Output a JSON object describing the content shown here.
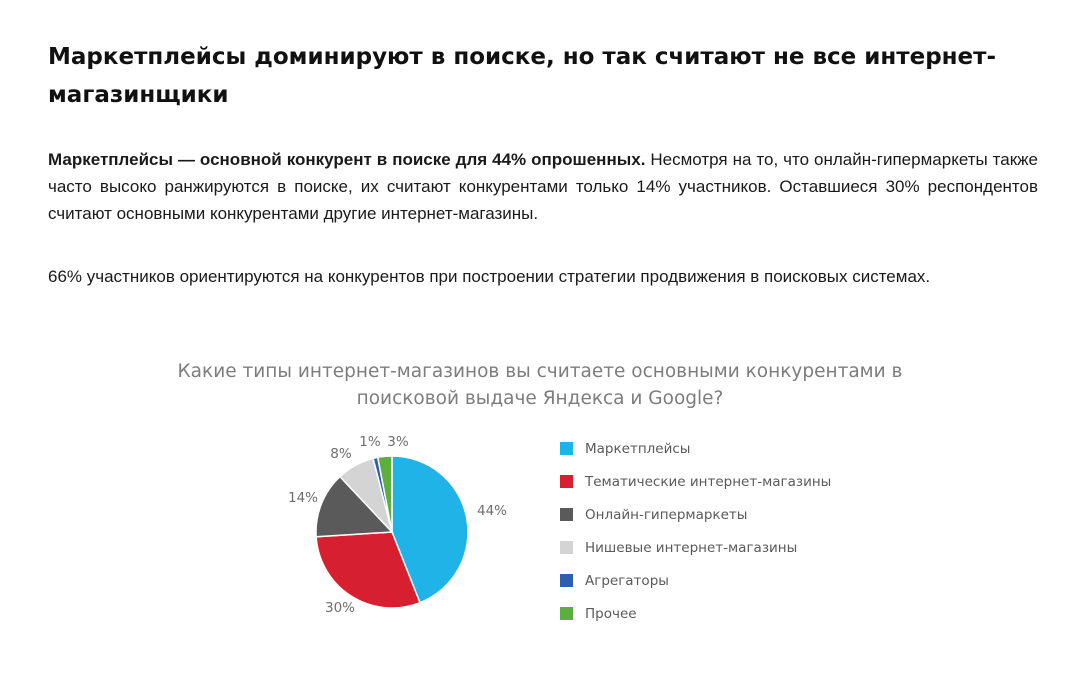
{
  "heading": "Маркетплейсы доминируют в поиске, но так считают не все интернет-магазинщики",
  "paragraph1": {
    "bold": "Маркетплейсы — основной конкурент в поиске для 44% опрошенных.",
    "rest": " Несмотря на то, что  онлайн-гипермаркеты также часто высоко ранжируются в поиске, их считают конкурентами только 14% участников. Оставшиеся 30% респондентов считают основными конкурентами другие интернет-магазины."
  },
  "paragraph2": "66% участников ориентируются на конкурентов при построении стратегии продвижения в поисковых системах.",
  "chart_data": {
    "type": "pie",
    "title": "Какие типы интернет-магазинов вы считаете основными конкурентами в поисковой выдаче Яндекса и Google?",
    "legend_position": "right",
    "series": [
      {
        "name": "Маркетплейсы",
        "value": 44,
        "label": "44%",
        "color": "#1fb3e7"
      },
      {
        "name": "Тематические интернет-магазины",
        "value": 30,
        "label": "30%",
        "color": "#d7202f"
      },
      {
        "name": "Онлайн-гипермаркеты",
        "value": 14,
        "label": "14%",
        "color": "#5a5a5a"
      },
      {
        "name": "Нишевые интернет-магазины",
        "value": 8,
        "label": "8%",
        "color": "#d4d4d4"
      },
      {
        "name": "Агрегаторы",
        "value": 1,
        "label": "1%",
        "color": "#2d5fae"
      },
      {
        "name": "Прочее",
        "value": 3,
        "label": "3%",
        "color": "#5cae3e"
      }
    ]
  }
}
